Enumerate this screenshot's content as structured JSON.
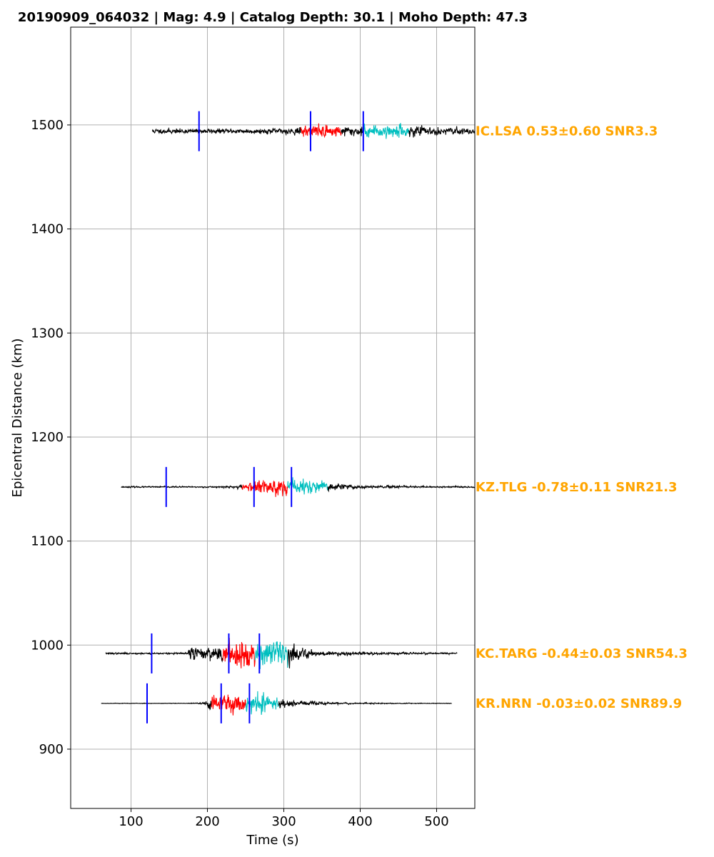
{
  "chart_data": {
    "type": "line",
    "title": "20190909_064032 | Mag: 4.9 | Catalog Depth: 30.1 | Moho Depth: 47.3",
    "xlabel": "Time (s)",
    "ylabel": "Epicentral Distance (km)",
    "xlim": [
      21,
      550
    ],
    "ylim": [
      843,
      1594
    ],
    "grid": true,
    "xticks": [
      100,
      200,
      300,
      400,
      500
    ],
    "yticks": [
      900,
      1000,
      1100,
      1200,
      1300,
      1400,
      1500
    ],
    "colors": {
      "trace": "#000000",
      "window1": "#ff0000",
      "window2": "#00bfbf",
      "pick": "#0000ff",
      "label": "#ffa500",
      "grid": "#b0b0b0"
    },
    "traces": [
      {
        "station": "IC.LSA",
        "label": "IC.LSA 0.53±0.60 SNR3.3",
        "distance": 1494,
        "start": 128,
        "end": 550,
        "amplitude": 13,
        "noise_level": 0.45,
        "arrival": 330,
        "picks": [
          189,
          335,
          404
        ],
        "red_window": [
          322,
          375
        ],
        "cyan_window": [
          403,
          463
        ],
        "seed": 11
      },
      {
        "station": "KZ.TLG",
        "label": "KZ.TLG -0.78±0.11 SNR21.3",
        "distance": 1152,
        "start": 87,
        "end": 550,
        "amplitude": 14,
        "noise_level": 0.1,
        "arrival": 262,
        "picks": [
          146,
          261,
          310
        ],
        "red_window": [
          245,
          305
        ],
        "cyan_window": [
          305,
          357
        ],
        "seed": 23
      },
      {
        "station": "KC.TARG",
        "label": "KC.TARG -0.44±0.03 SNR54.3",
        "distance": 992,
        "start": 67,
        "end": 527,
        "amplitude": 22,
        "noise_level": 0.06,
        "arrival": 175,
        "picks": [
          127,
          228,
          268
        ],
        "red_window": [
          220,
          262
        ],
        "cyan_window": [
          262,
          305
        ],
        "seed": 37
      },
      {
        "station": "KR.NRN",
        "label": "KR.NRN -0.03±0.02 SNR89.9",
        "distance": 944,
        "start": 61,
        "end": 520,
        "amplitude": 17,
        "noise_level": 0.03,
        "arrival": 200,
        "picks": [
          121,
          218,
          255
        ],
        "red_window": [
          205,
          250
        ],
        "cyan_window": [
          250,
          293
        ],
        "seed": 53
      }
    ]
  }
}
